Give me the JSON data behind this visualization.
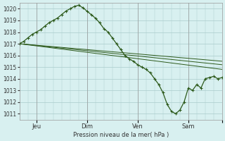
{
  "bg_color": "#d8f0f0",
  "grid_color": "#aacccc",
  "line_color": "#2d5a1b",
  "marker_color": "#2d5a1b",
  "xlabel_text": "Pression niveau de la mer( hPa )",
  "ylim": [
    1010.5,
    1020.5
  ],
  "yticks": [
    1011,
    1012,
    1013,
    1014,
    1015,
    1016,
    1017,
    1018,
    1019,
    1020
  ],
  "xlim": [
    0,
    192
  ],
  "x_tick_positions": [
    16,
    64,
    112,
    160,
    192
  ],
  "x_tick_labels": [
    "Jeu",
    "Dim",
    "Ven",
    "Sam",
    ""
  ],
  "main_line": {
    "x": [
      0,
      4,
      8,
      12,
      16,
      20,
      24,
      28,
      32,
      36,
      40,
      44,
      48,
      52,
      56,
      60,
      64,
      68,
      72,
      76,
      80,
      84,
      88,
      92,
      96,
      100,
      104,
      108,
      112,
      116,
      120,
      124,
      128,
      132,
      136,
      140,
      144,
      148,
      152,
      156,
      160,
      164,
      168,
      172,
      176,
      180,
      184,
      188,
      192
    ],
    "y": [
      1017.0,
      1017.2,
      1017.5,
      1017.8,
      1018.0,
      1018.2,
      1018.5,
      1018.8,
      1019.0,
      1019.2,
      1019.5,
      1019.8,
      1020.0,
      1020.2,
      1020.3,
      1020.1,
      1019.8,
      1019.5,
      1019.2,
      1018.8,
      1018.3,
      1018.0,
      1017.5,
      1017.0,
      1016.5,
      1016.0,
      1015.7,
      1015.5,
      1015.2,
      1015.0,
      1014.8,
      1014.5,
      1014.0,
      1013.5,
      1012.8,
      1011.8,
      1011.2,
      1011.0,
      1011.3,
      1012.0,
      1013.2,
      1013.0,
      1013.5,
      1013.2,
      1014.0,
      1014.1,
      1014.2,
      1014.0,
      1014.1
    ]
  },
  "flat_lines": [
    {
      "x": [
        0,
        192
      ],
      "y": [
        1017.0,
        1015.5
      ]
    },
    {
      "x": [
        0,
        192
      ],
      "y": [
        1017.0,
        1015.2
      ]
    },
    {
      "x": [
        0,
        192
      ],
      "y": [
        1017.0,
        1014.8
      ]
    }
  ]
}
